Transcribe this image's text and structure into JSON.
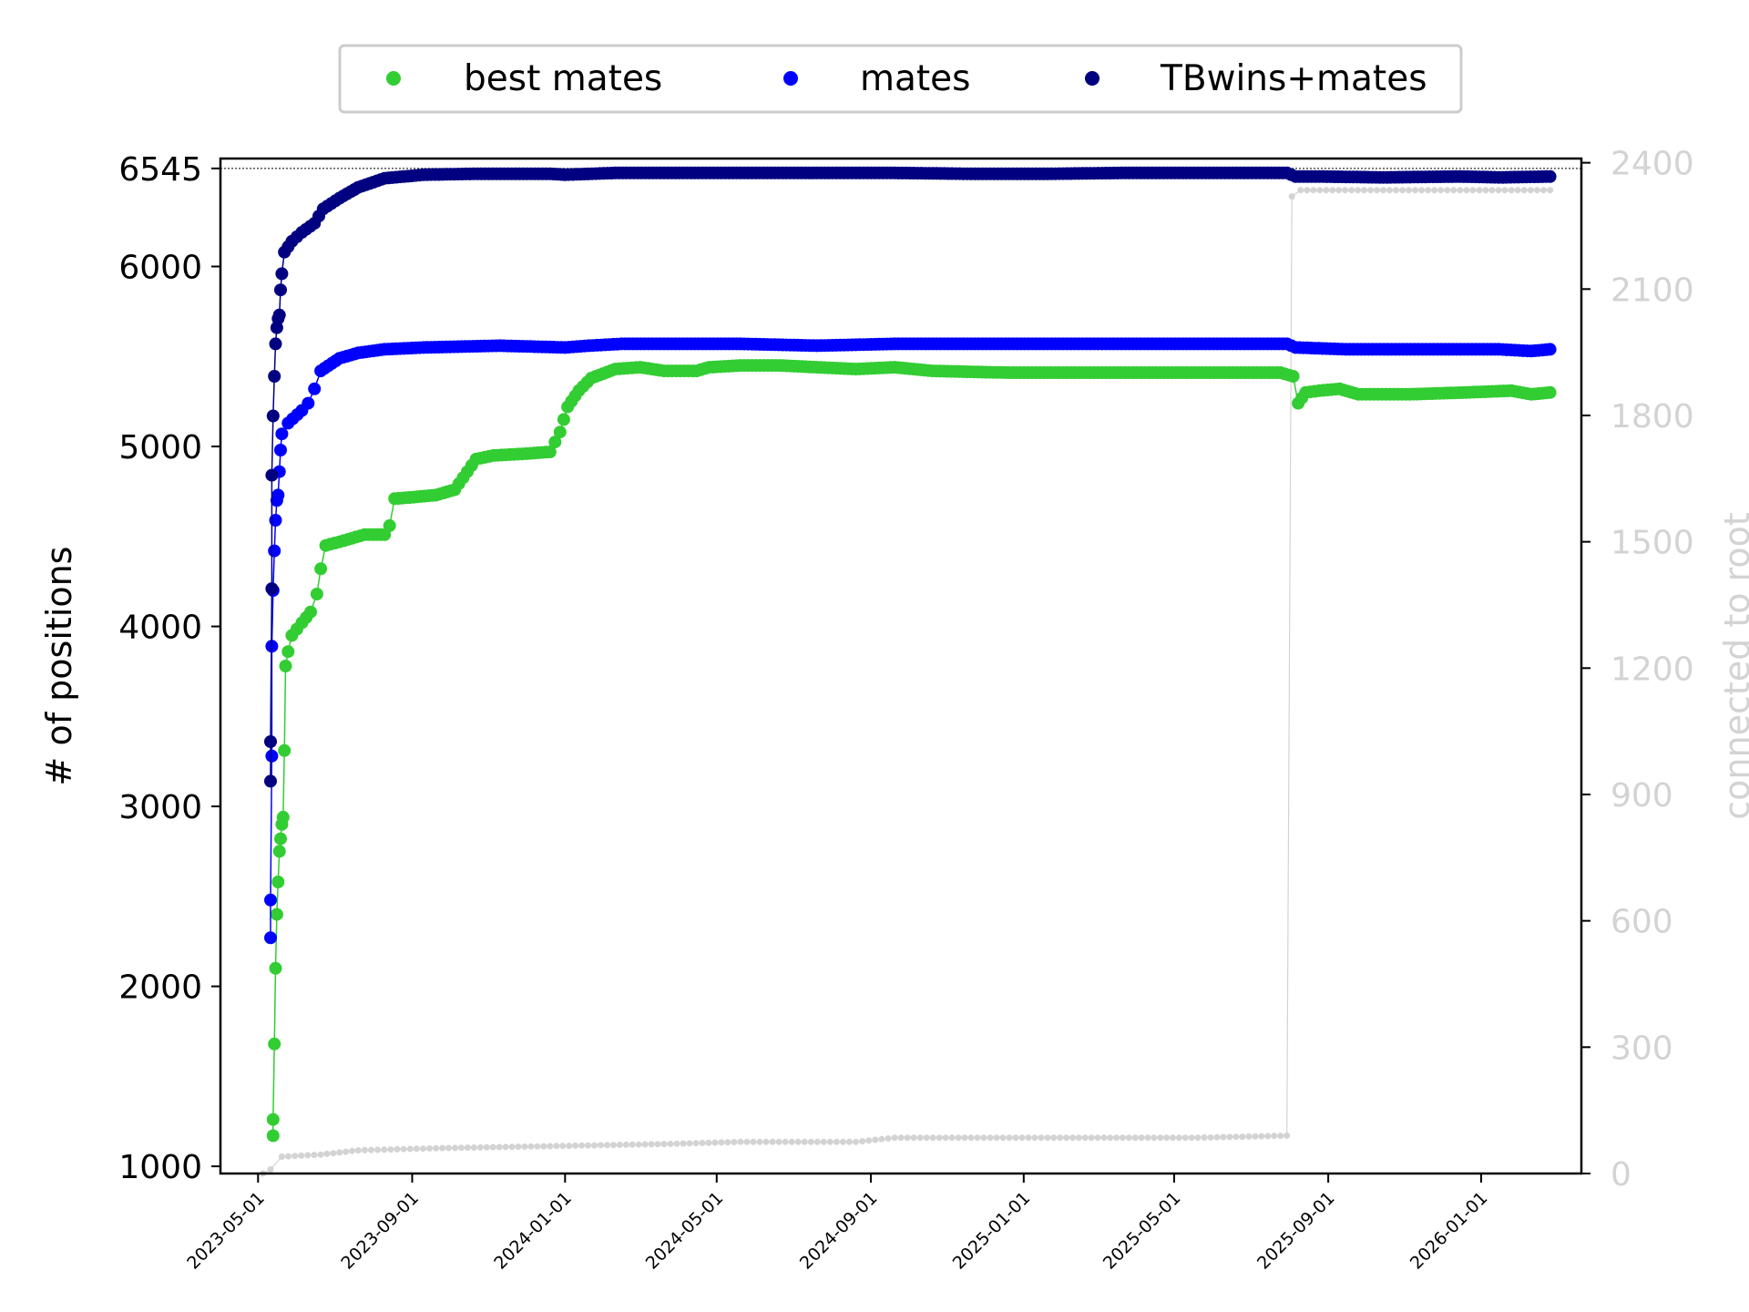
{
  "chart_data": {
    "type": "line",
    "xlabel": "",
    "ylabel": "# of positions",
    "y2label": "connected to root",
    "xlim": [
      "2023-04-01",
      "2026-03-22"
    ],
    "ylim": [
      960,
      6600
    ],
    "y2lim": [
      0,
      2410
    ],
    "x_ticks": [
      "2023-05-01",
      "2023-09-01",
      "2024-01-01",
      "2024-05-01",
      "2024-09-01",
      "2025-01-01",
      "2025-05-01",
      "2025-09-01",
      "2026-01-01"
    ],
    "y_ticks": [
      1000,
      2000,
      3000,
      4000,
      5000,
      6000,
      6545
    ],
    "y_tick_labels": [
      "1000",
      "2000",
      "3000",
      "4000",
      "5000",
      "6000",
      "6545"
    ],
    "y2_ticks": [
      0,
      300,
      600,
      900,
      1200,
      1500,
      1800,
      2100,
      2400
    ],
    "y2_tick_labels": [
      "0",
      "300",
      "600",
      "900",
      "1200",
      "1500",
      "1800",
      "2100",
      "2400"
    ],
    "reference_line": {
      "y": 6545,
      "style": "dotted"
    },
    "legend": {
      "placement": "top-center",
      "columns": 3
    },
    "grid": false,
    "series": [
      {
        "name": "best mates",
        "color": "#32cd32",
        "axis": "left",
        "points": [
          [
            "2023-05-13",
            1170
          ],
          [
            "2023-05-13",
            1260
          ],
          [
            "2023-05-14",
            1680
          ],
          [
            "2023-05-15",
            2100
          ],
          [
            "2023-05-16",
            2400
          ],
          [
            "2023-05-17",
            2580
          ],
          [
            "2023-05-18",
            2750
          ],
          [
            "2023-05-19",
            2820
          ],
          [
            "2023-05-20",
            2900
          ],
          [
            "2023-05-21",
            2940
          ],
          [
            "2023-05-22",
            3310
          ],
          [
            "2023-05-23",
            3780
          ],
          [
            "2023-05-25",
            3860
          ],
          [
            "2023-05-28",
            3950
          ],
          [
            "2023-06-05",
            4020
          ],
          [
            "2023-06-12",
            4080
          ],
          [
            "2023-06-17",
            4180
          ],
          [
            "2023-06-20",
            4320
          ],
          [
            "2023-06-24",
            4450
          ],
          [
            "2023-07-05",
            4470
          ],
          [
            "2023-07-15",
            4490
          ],
          [
            "2023-07-25",
            4510
          ],
          [
            "2023-08-10",
            4510
          ],
          [
            "2023-08-14",
            4560
          ],
          [
            "2023-08-18",
            4710
          ],
          [
            "2023-09-05",
            4720
          ],
          [
            "2023-09-20",
            4730
          ],
          [
            "2023-10-05",
            4760
          ],
          [
            "2023-10-15",
            4860
          ],
          [
            "2023-10-22",
            4930
          ],
          [
            "2023-11-05",
            4950
          ],
          [
            "2023-12-01",
            4960
          ],
          [
            "2023-12-20",
            4970
          ],
          [
            "2023-12-28",
            5080
          ],
          [
            "2024-01-03",
            5220
          ],
          [
            "2024-01-12",
            5310
          ],
          [
            "2024-01-22",
            5380
          ],
          [
            "2024-02-10",
            5430
          ],
          [
            "2024-03-01",
            5440
          ],
          [
            "2024-03-20",
            5420
          ],
          [
            "2024-04-15",
            5420
          ],
          [
            "2024-04-25",
            5440
          ],
          [
            "2024-05-20",
            5450
          ],
          [
            "2024-06-20",
            5450
          ],
          [
            "2024-07-20",
            5440
          ],
          [
            "2024-08-20",
            5430
          ],
          [
            "2024-09-20",
            5440
          ],
          [
            "2024-10-20",
            5420
          ],
          [
            "2024-12-20",
            5410
          ],
          [
            "2025-02-20",
            5410
          ],
          [
            "2025-04-20",
            5410
          ],
          [
            "2025-06-20",
            5410
          ],
          [
            "2025-07-25",
            5410
          ],
          [
            "2025-08-04",
            5390
          ],
          [
            "2025-08-08",
            5240
          ],
          [
            "2025-08-14",
            5300
          ],
          [
            "2025-08-25",
            5310
          ],
          [
            "2025-09-10",
            5320
          ],
          [
            "2025-09-25",
            5290
          ],
          [
            "2025-11-05",
            5290
          ],
          [
            "2025-12-20",
            5300
          ],
          [
            "2026-01-25",
            5310
          ],
          [
            "2026-02-10",
            5290
          ],
          [
            "2026-02-25",
            5300
          ]
        ]
      },
      {
        "name": "mates",
        "color": "#0000ff",
        "axis": "left",
        "points": [
          [
            "2023-05-11",
            2270
          ],
          [
            "2023-05-11",
            2480
          ],
          [
            "2023-05-12",
            3280
          ],
          [
            "2023-05-12",
            3890
          ],
          [
            "2023-05-13",
            4200
          ],
          [
            "2023-05-14",
            4420
          ],
          [
            "2023-05-15",
            4590
          ],
          [
            "2023-05-16",
            4700
          ],
          [
            "2023-05-17",
            4730
          ],
          [
            "2023-05-18",
            4860
          ],
          [
            "2023-05-19",
            4980
          ],
          [
            "2023-05-20",
            5070
          ],
          [
            "2023-05-25",
            5130
          ],
          [
            "2023-06-05",
            5200
          ],
          [
            "2023-06-10",
            5240
          ],
          [
            "2023-06-15",
            5320
          ],
          [
            "2023-06-20",
            5420
          ],
          [
            "2023-07-05",
            5490
          ],
          [
            "2023-07-20",
            5520
          ],
          [
            "2023-08-10",
            5540
          ],
          [
            "2023-09-10",
            5550
          ],
          [
            "2023-11-10",
            5560
          ],
          [
            "2024-01-01",
            5550
          ],
          [
            "2024-01-20",
            5560
          ],
          [
            "2024-02-15",
            5570
          ],
          [
            "2024-03-20",
            5570
          ],
          [
            "2024-05-20",
            5570
          ],
          [
            "2024-07-20",
            5560
          ],
          [
            "2024-09-20",
            5570
          ],
          [
            "2024-11-20",
            5570
          ],
          [
            "2025-01-20",
            5570
          ],
          [
            "2025-03-20",
            5570
          ],
          [
            "2025-05-20",
            5570
          ],
          [
            "2025-07-30",
            5570
          ],
          [
            "2025-08-06",
            5550
          ],
          [
            "2025-09-15",
            5540
          ],
          [
            "2025-11-15",
            5540
          ],
          [
            "2026-01-15",
            5540
          ],
          [
            "2026-02-10",
            5530
          ],
          [
            "2026-02-25",
            5540
          ]
        ]
      },
      {
        "name": "TBwins+mates",
        "color": "#000080",
        "axis": "left",
        "points": [
          [
            "2023-05-11",
            3140
          ],
          [
            "2023-05-11",
            3360
          ],
          [
            "2023-05-12",
            4210
          ],
          [
            "2023-05-12",
            4840
          ],
          [
            "2023-05-13",
            5170
          ],
          [
            "2023-05-14",
            5390
          ],
          [
            "2023-05-15",
            5570
          ],
          [
            "2023-05-16",
            5660
          ],
          [
            "2023-05-17",
            5710
          ],
          [
            "2023-05-18",
            5730
          ],
          [
            "2023-05-19",
            5870
          ],
          [
            "2023-05-20",
            5960
          ],
          [
            "2023-05-22",
            6080
          ],
          [
            "2023-05-28",
            6140
          ],
          [
            "2023-06-05",
            6190
          ],
          [
            "2023-06-15",
            6240
          ],
          [
            "2023-06-22",
            6320
          ],
          [
            "2023-07-05",
            6380
          ],
          [
            "2023-07-20",
            6440
          ],
          [
            "2023-08-10",
            6490
          ],
          [
            "2023-09-10",
            6510
          ],
          [
            "2023-10-20",
            6515
          ],
          [
            "2023-12-20",
            6515
          ],
          [
            "2024-01-01",
            6510
          ],
          [
            "2024-02-10",
            6520
          ],
          [
            "2024-03-20",
            6520
          ],
          [
            "2024-05-20",
            6520
          ],
          [
            "2024-07-20",
            6520
          ],
          [
            "2024-09-20",
            6520
          ],
          [
            "2024-11-20",
            6515
          ],
          [
            "2025-01-20",
            6515
          ],
          [
            "2025-03-20",
            6520
          ],
          [
            "2025-05-20",
            6520
          ],
          [
            "2025-07-30",
            6520
          ],
          [
            "2025-08-06",
            6500
          ],
          [
            "2025-08-25",
            6500
          ],
          [
            "2025-10-15",
            6495
          ],
          [
            "2025-12-15",
            6500
          ],
          [
            "2026-01-15",
            6495
          ],
          [
            "2026-02-25",
            6500
          ]
        ]
      },
      {
        "name": "connected to root",
        "color": "#d3d3d3",
        "axis": "right",
        "points": [
          [
            "2023-05-05",
            0
          ],
          [
            "2023-05-11",
            10
          ],
          [
            "2023-05-20",
            40
          ],
          [
            "2023-06-20",
            45
          ],
          [
            "2023-07-20",
            55
          ],
          [
            "2023-09-20",
            60
          ],
          [
            "2023-12-20",
            65
          ],
          [
            "2024-03-20",
            70
          ],
          [
            "2024-05-20",
            75
          ],
          [
            "2024-08-20",
            75
          ],
          [
            "2024-09-20",
            85
          ],
          [
            "2025-01-20",
            85
          ],
          [
            "2025-05-20",
            85
          ],
          [
            "2025-07-30",
            90
          ],
          [
            "2025-08-03",
            2320
          ],
          [
            "2025-08-10",
            2335
          ],
          [
            "2025-10-20",
            2335
          ],
          [
            "2026-01-20",
            2335
          ],
          [
            "2026-02-25",
            2335
          ]
        ]
      }
    ]
  }
}
